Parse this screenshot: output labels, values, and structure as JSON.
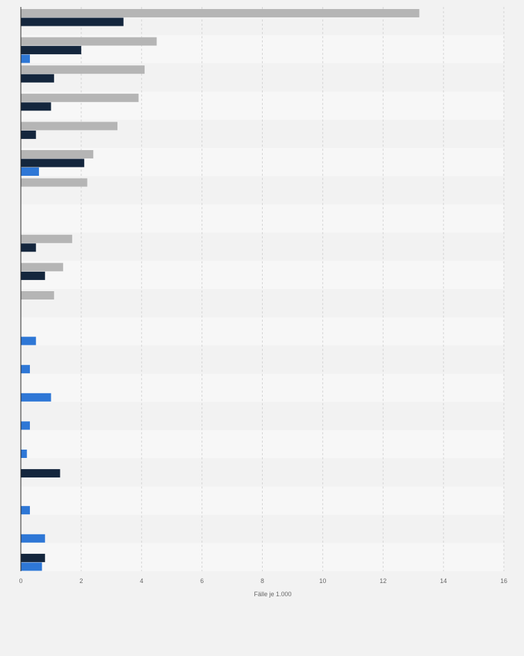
{
  "chart_data": {
    "type": "bar",
    "orientation": "horizontal",
    "categories": [
      "",
      "",
      "",
      "",
      "",
      "",
      "",
      "",
      "",
      "",
      "",
      "",
      "",
      "",
      "",
      "",
      "",
      "",
      "",
      ""
    ],
    "series": [
      {
        "color": "#b5b5b5",
        "values": [
          13.2,
          4.5,
          4.1,
          3.9,
          3.2,
          2.4,
          2.2,
          null,
          1.7,
          1.4,
          1.1,
          null,
          null,
          null,
          null,
          null,
          null,
          null,
          null,
          null
        ]
      },
      {
        "color": "#14263d",
        "values": [
          3.4,
          2.0,
          1.1,
          1.0,
          0.5,
          2.1,
          null,
          null,
          0.5,
          0.8,
          null,
          null,
          null,
          null,
          null,
          null,
          1.3,
          null,
          null,
          0.8
        ]
      },
      {
        "color": "#2e77d6",
        "values": [
          null,
          0.3,
          null,
          null,
          null,
          0.6,
          null,
          null,
          null,
          null,
          null,
          0.5,
          0.3,
          1.0,
          0.3,
          0.2,
          null,
          0.3,
          0.8,
          0.7
        ]
      }
    ],
    "xlabel": "Fälle je 1.000",
    "ylabel": "",
    "xlim": [
      0,
      16
    ],
    "xticks": [
      "0",
      "2",
      "4",
      "6",
      "8",
      "10",
      "12",
      "14",
      "16"
    ],
    "grid": "vertical dashed",
    "legend": "none"
  }
}
